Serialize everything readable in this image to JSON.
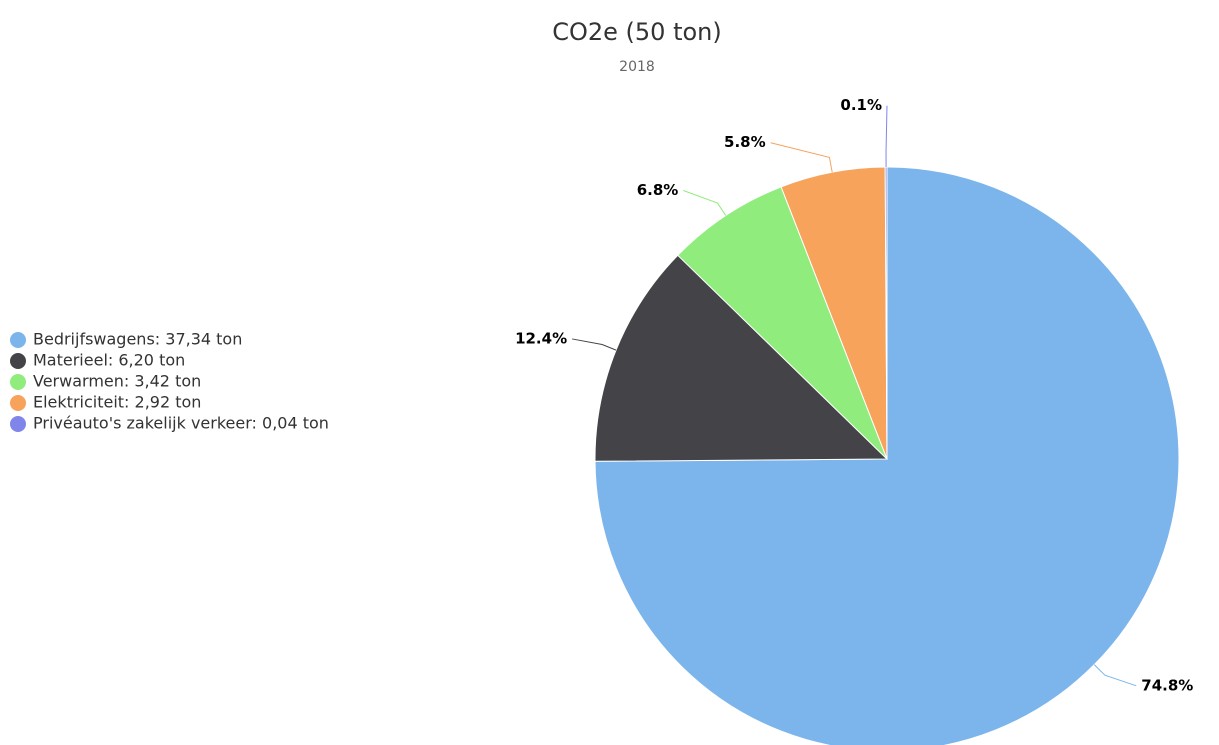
{
  "chart_data": {
    "type": "pie",
    "title": "CO2e (50 ton)",
    "subtitle": "2018",
    "categories": [
      "Bedrijfswagens: 37,34 ton",
      "Materieel: 6,20 ton",
      "Verwarmen: 3,42 ton",
      "Elektriciteit: 2,92 ton",
      "Privéauto's zakelijk verkeer: 0,04 ton"
    ],
    "values": [
      74.8,
      12.4,
      6.8,
      5.8,
      0.1
    ],
    "value_labels": [
      "74.8%",
      "12.4%",
      "6.8%",
      "5.8%",
      "0.1%"
    ],
    "colors": [
      "#7cb5ec",
      "#434348",
      "#90ed7d",
      "#f7a35c",
      "#8085e9"
    ],
    "legend": "left"
  }
}
